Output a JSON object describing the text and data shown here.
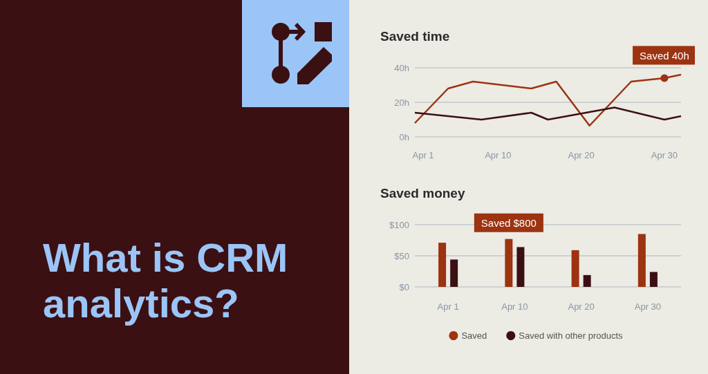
{
  "chart_data": [
    {
      "type": "other",
      "title": "What is CRM analytics?"
    },
    {
      "type": "line",
      "title": "Saved time",
      "xlim": [
        "--03-31",
        "--05-02"
      ],
      "xticks": [
        {
          "value": "--04-01",
          "label": "Apr 1"
        },
        {
          "value": "--04-10",
          "label": "Apr 10"
        },
        {
          "value": "--04-20",
          "label": "Apr 20"
        },
        {
          "value": "--04-30",
          "label": "Apr 30"
        }
      ],
      "ylim": [
        0,
        40
      ],
      "yticks": [
        {
          "value": 0,
          "label": "0h"
        },
        {
          "value": 20,
          "label": "20h"
        },
        {
          "value": 40,
          "label": "40h"
        }
      ],
      "grid": "y",
      "series": [
        {
          "color": "#9c3311",
          "x": [
            "--03-31",
            "--04-04",
            "--04-07",
            "--04-14",
            "--04-17",
            "--04-21",
            "--04-26",
            "--04-30",
            "--05-02"
          ],
          "values": [
            8,
            28,
            32,
            28,
            32,
            6.5,
            32,
            34,
            36
          ]
        },
        {
          "color": "#3b1013",
          "x": [
            "--03-31",
            "--04-08",
            "--04-14",
            "--04-16",
            "--04-24",
            "--04-30",
            "--05-02"
          ],
          "values": [
            14,
            10,
            14,
            10,
            17,
            10,
            12
          ]
        }
      ],
      "annotations": [
        {
          "text": "Saved 40h",
          "x": "--04-30",
          "y": 34
        }
      ]
    },
    {
      "type": "bar",
      "title": "Saved money",
      "categories": [
        "Apr 1",
        "Apr 10",
        "Apr 20",
        "Apr 30"
      ],
      "ylim": [
        0,
        100
      ],
      "yticks": [
        {
          "value": 0,
          "label": "$0"
        },
        {
          "value": 50,
          "label": "$50"
        },
        {
          "value": 100,
          "label": "$100"
        }
      ],
      "grid": "y",
      "legend": "bottom",
      "series": [
        {
          "name": "Saved",
          "color": "#9c3311",
          "values": [
            71,
            77,
            59,
            85
          ]
        },
        {
          "name": "Saved with other products",
          "color": "#3b1013",
          "values": [
            44,
            64,
            19,
            24
          ]
        }
      ],
      "annotations": [
        {
          "text": "Saved $800",
          "x": "Apr 10",
          "y": 77
        }
      ]
    }
  ]
}
